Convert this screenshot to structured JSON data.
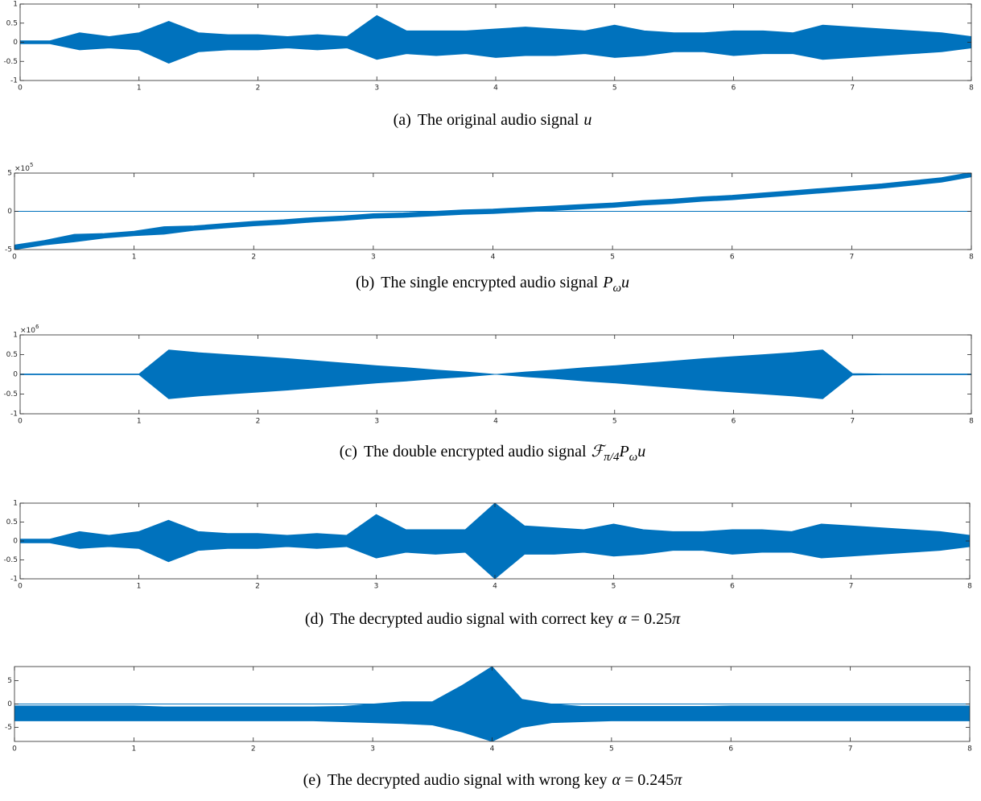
{
  "chart_data": [
    {
      "type": "area",
      "caption_label": "(a)",
      "caption": "The original audio signal",
      "caption_math": [
        {
          "text": "u",
          "style": "italic"
        }
      ],
      "x": [
        0,
        0.25,
        0.5,
        0.75,
        1,
        1.25,
        1.5,
        1.75,
        2,
        2.25,
        2.5,
        2.75,
        3,
        3.25,
        3.5,
        3.75,
        4,
        4.25,
        4.5,
        4.75,
        5,
        5.25,
        5.5,
        5.75,
        6,
        6.25,
        6.5,
        6.75,
        7,
        7.25,
        7.5,
        7.75,
        8
      ],
      "series": [
        {
          "color": "#0072bd",
          "values": [
            0.04,
            0.04,
            0.25,
            0.15,
            0.25,
            0.55,
            0.25,
            0.2,
            0.2,
            0.15,
            0.2,
            0.15,
            0.7,
            0.3,
            0.3,
            0.3,
            0.35,
            0.4,
            0.35,
            0.3,
            0.45,
            0.3,
            0.25,
            0.25,
            0.3,
            0.3,
            0.25,
            0.45,
            0.4,
            0.35,
            0.3,
            0.25,
            0.15
          ]
        },
        {
          "color": "#0072bd",
          "values": [
            -0.04,
            -0.04,
            -0.2,
            -0.15,
            -0.2,
            -0.55,
            -0.25,
            -0.2,
            -0.2,
            -0.15,
            -0.2,
            -0.15,
            -0.45,
            -0.3,
            -0.35,
            -0.3,
            -0.4,
            -0.35,
            -0.35,
            -0.3,
            -0.4,
            -0.35,
            -0.25,
            -0.25,
            -0.35,
            -0.3,
            -0.3,
            -0.45,
            -0.4,
            -0.35,
            -0.3,
            -0.25,
            -0.15
          ]
        }
      ],
      "xlim": [
        0,
        8
      ],
      "xticks": [
        0,
        1,
        2,
        3,
        4,
        5,
        6,
        7,
        8
      ],
      "ylim": [
        -1,
        1
      ],
      "yticks": [
        -1,
        -0.5,
        0,
        0.5,
        1
      ]
    },
    {
      "type": "area",
      "caption_label": "(b)",
      "caption": "The single encrypted audio signal",
      "caption_math": [
        {
          "text": "P",
          "style": "italic"
        },
        {
          "text": "ω",
          "style": "sub"
        },
        {
          "text": "u",
          "style": "italic"
        }
      ],
      "y_exponent": {
        "base": "×10",
        "power": "5"
      },
      "x": [
        0,
        0.25,
        0.5,
        0.75,
        1,
        1.25,
        1.5,
        1.75,
        2,
        2.25,
        2.5,
        2.75,
        3,
        3.25,
        3.5,
        3.75,
        4,
        4.25,
        4.5,
        4.75,
        5,
        5.25,
        5.5,
        5.75,
        6,
        6.25,
        6.5,
        6.75,
        7,
        7.25,
        7.5,
        7.75,
        8
      ],
      "series": [
        {
          "color": "#0072bd",
          "values": [
            -4.4,
            -3.8,
            -3.0,
            -2.9,
            -2.6,
            -2.0,
            -1.9,
            -1.6,
            -1.3,
            -1.1,
            -0.8,
            -0.6,
            -0.3,
            -0.2,
            0.0,
            0.2,
            0.3,
            0.5,
            0.7,
            0.9,
            1.1,
            1.4,
            1.6,
            1.9,
            2.1,
            2.4,
            2.7,
            3.0,
            3.3,
            3.6,
            4.0,
            4.4,
            5.1
          ]
        },
        {
          "color": "#0072bd",
          "values": [
            -5.0,
            -4.4,
            -4.0,
            -3.5,
            -3.2,
            -3.0,
            -2.5,
            -2.2,
            -1.9,
            -1.7,
            -1.4,
            -1.2,
            -0.9,
            -0.8,
            -0.6,
            -0.4,
            -0.3,
            -0.1,
            0.1,
            0.3,
            0.5,
            0.8,
            1.0,
            1.3,
            1.5,
            1.8,
            2.1,
            2.4,
            2.7,
            3.0,
            3.4,
            3.8,
            4.5
          ]
        }
      ],
      "xlim": [
        0,
        8
      ],
      "xticks": [
        0,
        1,
        2,
        3,
        4,
        5,
        6,
        7,
        8
      ],
      "ylim": [
        -5,
        5
      ],
      "yticks": [
        -5,
        0,
        5
      ]
    },
    {
      "type": "area",
      "caption_label": "(c)",
      "caption": "The double encrypted audio signal",
      "caption_math": [
        {
          "text": "ℱ",
          "style": "italic"
        },
        {
          "text": "π/4",
          "style": "sub"
        },
        {
          "text": "P",
          "style": "italic"
        },
        {
          "text": "ω",
          "style": "sub"
        },
        {
          "text": "u",
          "style": "italic"
        }
      ],
      "y_exponent": {
        "base": "×10",
        "power": "6"
      },
      "x": [
        0,
        0.25,
        0.5,
        0.75,
        1,
        1.25,
        1.5,
        1.75,
        2,
        2.25,
        2.5,
        2.75,
        3,
        3.25,
        3.5,
        3.75,
        4,
        4.25,
        4.5,
        4.75,
        5,
        5.25,
        5.5,
        5.75,
        6,
        6.25,
        6.5,
        6.75,
        7,
        7.25,
        7.5,
        7.75,
        8
      ],
      "series": [
        {
          "color": "#0072bd",
          "values": [
            0.01,
            0.01,
            0.01,
            0.01,
            0.01,
            0.62,
            0.55,
            0.5,
            0.45,
            0.4,
            0.34,
            0.28,
            0.22,
            0.17,
            0.11,
            0.06,
            0,
            0.06,
            0.11,
            0.17,
            0.22,
            0.28,
            0.34,
            0.4,
            0.45,
            0.5,
            0.55,
            0.62,
            0.02,
            0.01,
            0.01,
            0.01,
            0.01
          ]
        },
        {
          "color": "#0072bd",
          "values": [
            -0.01,
            -0.01,
            -0.01,
            -0.01,
            -0.01,
            -0.62,
            -0.55,
            -0.5,
            -0.45,
            -0.4,
            -0.34,
            -0.28,
            -0.22,
            -0.17,
            -0.11,
            -0.06,
            0,
            -0.06,
            -0.11,
            -0.17,
            -0.22,
            -0.28,
            -0.34,
            -0.4,
            -0.45,
            -0.5,
            -0.55,
            -0.62,
            -0.02,
            -0.01,
            -0.01,
            -0.01,
            -0.01
          ]
        }
      ],
      "xlim": [
        0,
        8
      ],
      "xticks": [
        0,
        1,
        2,
        3,
        4,
        5,
        6,
        7,
        8
      ],
      "ylim": [
        -1,
        1
      ],
      "yticks": [
        -1,
        -0.5,
        0,
        0.5,
        1
      ]
    },
    {
      "type": "area",
      "caption_label": "(d)",
      "caption": "The decrypted audio signal with correct key",
      "caption_math": [
        {
          "text": "α",
          "style": "italic"
        },
        {
          "text": " = 0.25",
          "style": "upright"
        },
        {
          "text": "π",
          "style": "italic"
        }
      ],
      "x": [
        0,
        0.25,
        0.5,
        0.75,
        1,
        1.25,
        1.5,
        1.75,
        2,
        2.25,
        2.5,
        2.75,
        3,
        3.25,
        3.5,
        3.75,
        4,
        4.25,
        4.5,
        4.75,
        5,
        5.25,
        5.5,
        5.75,
        6,
        6.25,
        6.5,
        6.75,
        7,
        7.25,
        7.5,
        7.75,
        8
      ],
      "series": [
        {
          "color": "#0072bd",
          "values": [
            0.05,
            0.05,
            0.25,
            0.15,
            0.25,
            0.55,
            0.25,
            0.2,
            0.2,
            0.15,
            0.2,
            0.15,
            0.7,
            0.3,
            0.3,
            0.3,
            1,
            0.4,
            0.35,
            0.3,
            0.45,
            0.3,
            0.25,
            0.25,
            0.3,
            0.3,
            0.25,
            0.45,
            0.4,
            0.35,
            0.3,
            0.25,
            0.15
          ]
        },
        {
          "color": "#0072bd",
          "values": [
            -0.05,
            -0.05,
            -0.2,
            -0.15,
            -0.2,
            -0.55,
            -0.25,
            -0.2,
            -0.2,
            -0.15,
            -0.2,
            -0.15,
            -0.45,
            -0.3,
            -0.35,
            -0.3,
            -1,
            -0.35,
            -0.35,
            -0.3,
            -0.4,
            -0.35,
            -0.25,
            -0.25,
            -0.35,
            -0.3,
            -0.3,
            -0.45,
            -0.4,
            -0.35,
            -0.3,
            -0.25,
            -0.15
          ]
        }
      ],
      "xlim": [
        0,
        8
      ],
      "xticks": [
        0,
        1,
        2,
        3,
        4,
        5,
        6,
        7,
        8
      ],
      "ylim": [
        -1,
        1
      ],
      "yticks": [
        -1,
        -0.5,
        0,
        0.5,
        1
      ]
    },
    {
      "type": "area",
      "caption_label": "(e)",
      "caption": "The decrypted audio signal with wrong key",
      "caption_math": [
        {
          "text": "α",
          "style": "italic"
        },
        {
          "text": " = 0.245",
          "style": "upright"
        },
        {
          "text": "π",
          "style": "italic"
        }
      ],
      "x": [
        0,
        0.25,
        0.5,
        0.75,
        1,
        1.25,
        1.5,
        1.75,
        2,
        2.25,
        2.5,
        2.75,
        3,
        3.25,
        3.5,
        3.75,
        4,
        4.25,
        4.5,
        4.75,
        5,
        5.25,
        5.5,
        5.75,
        6,
        6.25,
        6.5,
        6.75,
        7,
        7.25,
        7.5,
        7.75,
        8
      ],
      "series": [
        {
          "color": "#0072bd",
          "values": [
            -0.4,
            -0.4,
            -0.4,
            -0.4,
            -0.4,
            -0.6,
            -0.6,
            -0.6,
            -0.6,
            -0.6,
            -0.6,
            -0.5,
            0,
            0.5,
            0.5,
            4,
            8,
            1,
            0,
            -0.5,
            -0.5,
            -0.5,
            -0.5,
            -0.5,
            -0.4,
            -0.4,
            -0.4,
            -0.4,
            -0.4,
            -0.4,
            -0.4,
            -0.4,
            -0.4
          ]
        },
        {
          "color": "#0072bd",
          "values": [
            -3.6,
            -3.6,
            -3.6,
            -3.6,
            -3.6,
            -3.6,
            -3.6,
            -3.6,
            -3.6,
            -3.6,
            -3.6,
            -3.8,
            -4,
            -4.2,
            -4.5,
            -6,
            -8,
            -5,
            -4,
            -3.8,
            -3.6,
            -3.6,
            -3.6,
            -3.6,
            -3.6,
            -3.6,
            -3.6,
            -3.6,
            -3.6,
            -3.6,
            -3.6,
            -3.6,
            -3.6
          ]
        }
      ],
      "xlim": [
        0,
        8
      ],
      "xticks": [
        0,
        1,
        2,
        3,
        4,
        5,
        6,
        7,
        8
      ],
      "ylim": [
        -8,
        8
      ],
      "yticks": [
        -5,
        0,
        5
      ]
    }
  ]
}
